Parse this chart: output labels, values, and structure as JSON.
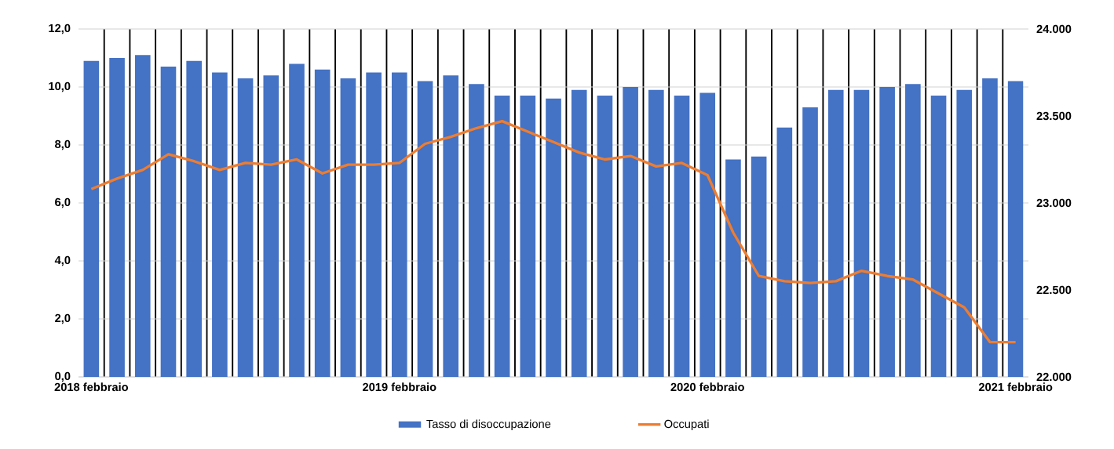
{
  "chart_data": {
    "type": "bar",
    "categories": [
      "2018 febbraio",
      null,
      null,
      null,
      null,
      null,
      null,
      null,
      null,
      null,
      null,
      null,
      "2019 febbraio",
      null,
      null,
      null,
      null,
      null,
      null,
      null,
      null,
      null,
      null,
      null,
      "2020 febbraio",
      null,
      null,
      null,
      null,
      null,
      null,
      null,
      null,
      null,
      null,
      null,
      "2021 febbraio"
    ],
    "series": [
      {
        "name": "Tasso di disoccupazione",
        "color": "#4472c4",
        "values": [
          10.9,
          11.0,
          11.1,
          10.7,
          10.9,
          10.5,
          10.3,
          10.4,
          10.8,
          10.6,
          10.3,
          10.5,
          10.5,
          10.2,
          10.4,
          10.1,
          9.7,
          9.7,
          9.6,
          9.9,
          9.7,
          10.0,
          9.9,
          9.7,
          9.8,
          7.5,
          7.6,
          8.6,
          9.3,
          9.9,
          9.9,
          10.0,
          10.1,
          9.7,
          9.9,
          10.3,
          10.2
        ]
      },
      {
        "name": "Occupati",
        "type": "line",
        "axis": "y2",
        "color": "#ed7d31",
        "values": [
          23080,
          23140,
          23190,
          23280,
          23240,
          23190,
          23230,
          23220,
          23250,
          23170,
          23220,
          23220,
          23230,
          23340,
          23380,
          23430,
          23470,
          23410,
          23350,
          23290,
          23250,
          23270,
          23210,
          23230,
          23160,
          22830,
          22580,
          22550,
          22540,
          22550,
          22610,
          22580,
          22560,
          22480,
          22400,
          22200,
          22200
        ]
      }
    ],
    "ylim": [
      0,
      12
    ],
    "yticks": [
      {
        "value": 0,
        "label": "0,0"
      },
      {
        "value": 2,
        "label": "2,0"
      },
      {
        "value": 4,
        "label": "4,0"
      },
      {
        "value": 6,
        "label": "6,0"
      },
      {
        "value": 8,
        "label": "8,0"
      },
      {
        "value": 10,
        "label": "10,0"
      },
      {
        "value": 12,
        "label": "12,0"
      }
    ],
    "y2lim": [
      22000,
      24000
    ],
    "y2ticks": [
      {
        "value": 22000,
        "label": "22.000"
      },
      {
        "value": 22500,
        "label": "22.500"
      },
      {
        "value": 23000,
        "label": "23.000"
      },
      {
        "value": 23500,
        "label": "23.500"
      },
      {
        "value": 24000,
        "label": "24.000"
      }
    ],
    "grid": true,
    "legend": "bottom",
    "marker": "none",
    "line_style": "solid"
  }
}
